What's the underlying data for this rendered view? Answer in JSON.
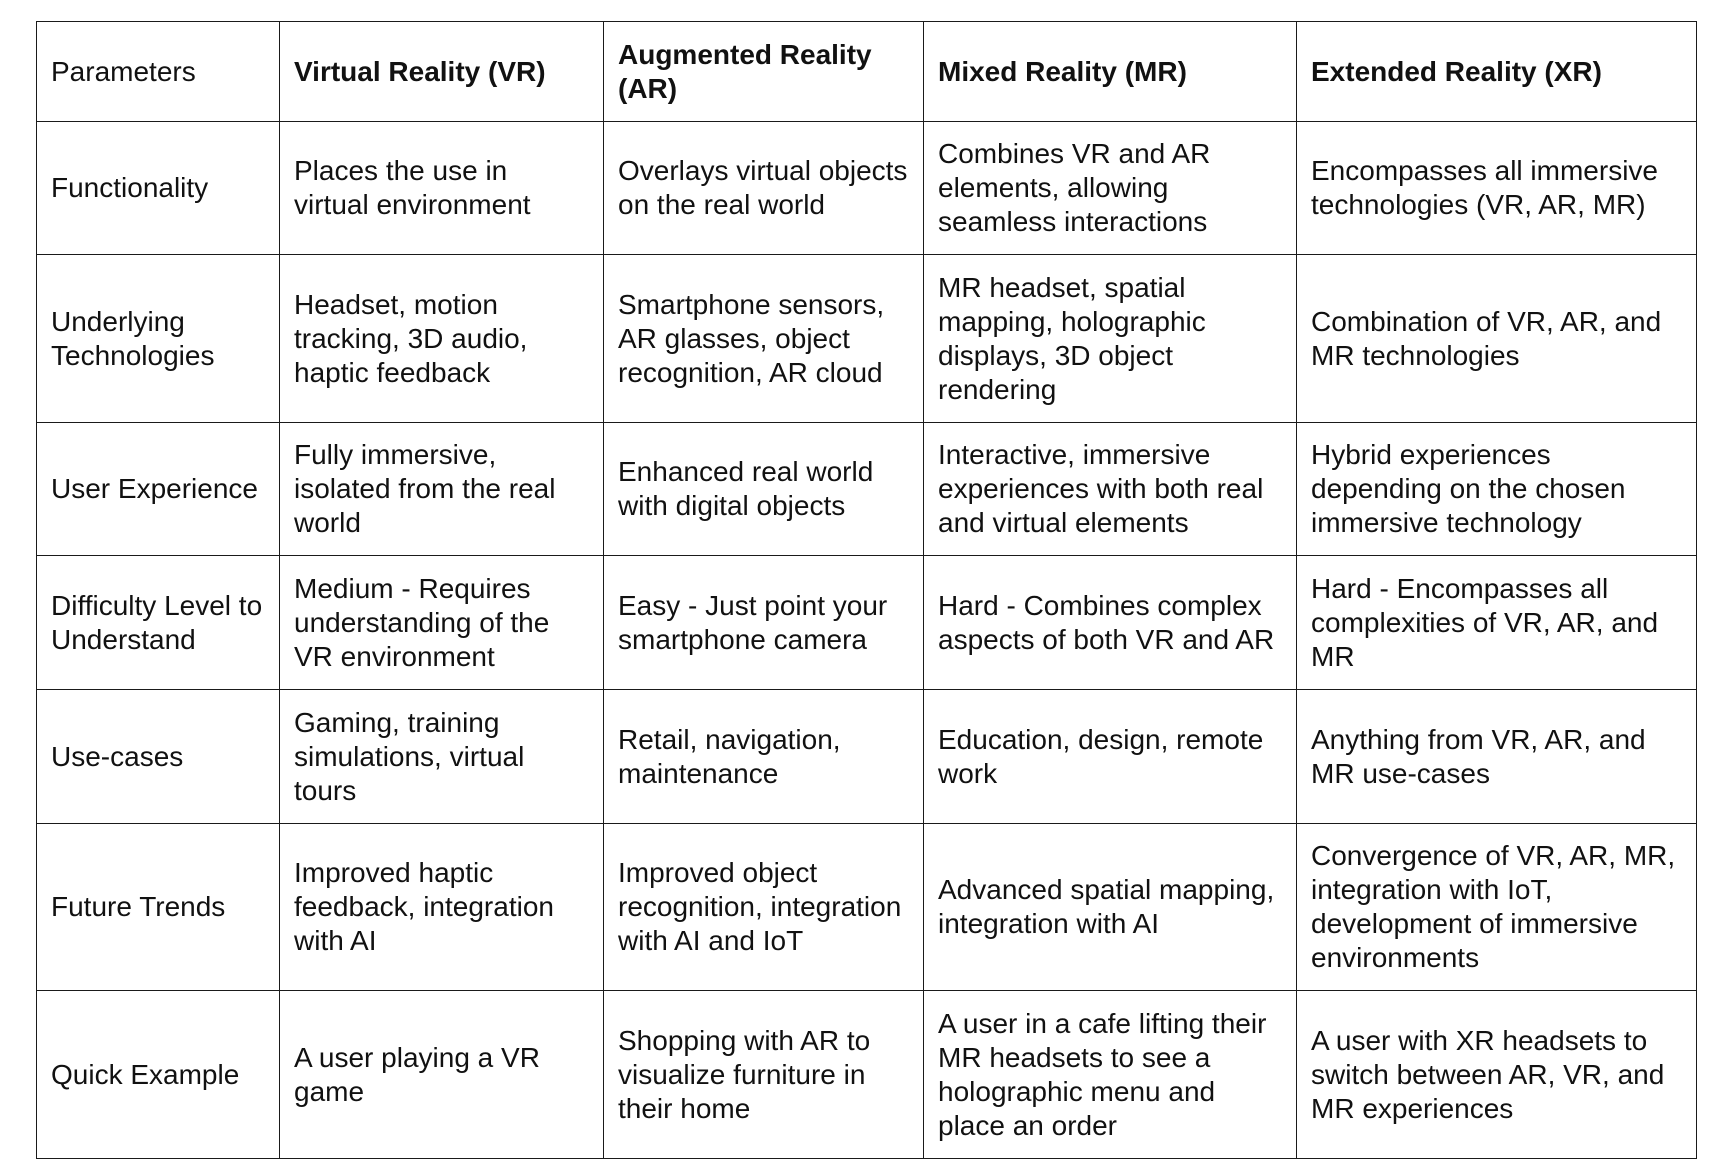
{
  "table": {
    "headers": [
      "Parameters",
      "Virtual Reality (VR)",
      "Augmented Reality (AR)",
      "Mixed Reality (MR)",
      "Extended Reality (XR)"
    ],
    "rows": [
      [
        "Functionality",
        "Places the use in virtual environment",
        "Overlays virtual objects on the real world",
        "Combines VR and AR elements, allowing seamless interactions",
        "Encompasses all immersive technologies (VR, AR, MR)"
      ],
      [
        "Underlying Technologies",
        "Headset, motion tracking, 3D audio, haptic feedback",
        "Smartphone sensors, AR glasses, object recognition, AR cloud",
        "MR headset, spatial mapping, holographic displays, 3D object rendering",
        "Combination of VR, AR, and MR technologies"
      ],
      [
        "User Experience",
        "Fully immersive, isolated from the real world",
        "Enhanced real world with digital objects",
        "Interactive, immersive experiences with both real and virtual elements",
        "Hybrid experiences depending on the chosen immersive technology"
      ],
      [
        "Difficulty Level to Understand",
        "Medium - Requires understanding of the VR environment",
        "Easy - Just point your smartphone camera",
        "Hard - Combines complex aspects of both VR and AR",
        "Hard - Encompasses all complexities of VR, AR, and MR"
      ],
      [
        "Use-cases",
        "Gaming, training simulations, virtual tours",
        "Retail, navigation, maintenance",
        "Education, design, remote work",
        "Anything from VR, AR, and MR use-cases"
      ],
      [
        "Future Trends",
        "Improved haptic feedback, integration with AI",
        "Improved object recognition, integration with AI and IoT",
        "Advanced spatial mapping, integration with AI",
        "Convergence of VR, AR, MR, integration with IoT, development of immersive environments"
      ],
      [
        "Quick Example",
        "A user playing a VR game",
        "Shopping with AR to visualize furniture in their home",
        "A user in a cafe lifting their MR headsets to see a holographic menu and place an order",
        "A user with XR headsets to switch between AR, VR, and MR experiences"
      ]
    ]
  }
}
